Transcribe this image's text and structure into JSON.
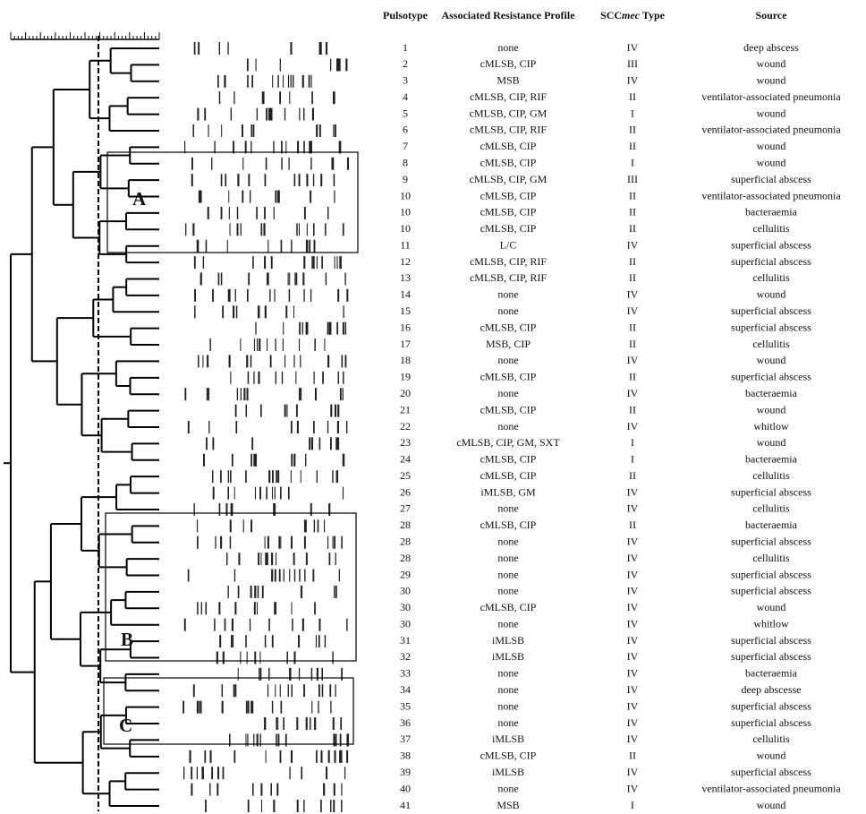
{
  "table": {
    "header": [
      "Pulsotype",
      "Associated Resistance Profile",
      {
        "prefix": "SCC",
        "italic": "mec",
        "suffix": " Type"
      },
      "Source"
    ],
    "rows": [
      [
        "1",
        "none",
        "IV",
        "deep abscess"
      ],
      [
        "2",
        "cMLSB, CIP",
        "III",
        "wound"
      ],
      [
        "3",
        "MSB",
        "IV",
        "wound"
      ],
      [
        "4",
        "cMLSB, CIP, RIF",
        "II",
        "ventilator-associated pneumonia"
      ],
      [
        "5",
        "cMLSB, CIP, GM",
        "I",
        "wound"
      ],
      [
        "6",
        "cMLSB, CIP, RIF",
        "II",
        "ventilator-associated pneumonia"
      ],
      [
        "7",
        "cMLSB, CIP",
        "II",
        "wound"
      ],
      [
        "8",
        "cMLSB, CIP",
        "I",
        "wound"
      ],
      [
        "9",
        "cMLSB, CIP, GM",
        "III",
        "superficial abscess"
      ],
      [
        "10",
        "cMLSB, CIP",
        "II",
        "ventilator-associated pneumonia"
      ],
      [
        "10",
        "cMLSB, CIP",
        "II",
        "bacteraemia"
      ],
      [
        "10",
        "cMLSB, CIP",
        "II",
        "cellulitis"
      ],
      [
        "11",
        "L/C",
        "IV",
        "superficial abscess"
      ],
      [
        "12",
        "cMLSB, CIP, RIF",
        "II",
        "superficial abscess"
      ],
      [
        "13",
        "cMLSB, CIP, RIF",
        "II",
        "cellulitis"
      ],
      [
        "14",
        "none",
        "IV",
        "wound"
      ],
      [
        "15",
        "none",
        "IV",
        "superficial abscess"
      ],
      [
        "16",
        "cMLSB, CIP",
        "II",
        "superficial abscess"
      ],
      [
        "17",
        "MSB, CIP",
        "II",
        "cellulitis"
      ],
      [
        "18",
        "none",
        "IV",
        "wound"
      ],
      [
        "19",
        "cMLSB, CIP",
        "II",
        "superficial abscess"
      ],
      [
        "20",
        "none",
        "IV",
        "bacteraemia"
      ],
      [
        "21",
        "cMLSB, CIP",
        "II",
        "wound"
      ],
      [
        "22",
        "none",
        "IV",
        "whitlow"
      ],
      [
        "23",
        "cMLSB, CIP, GM, SXT",
        "I",
        "wound"
      ],
      [
        "24",
        "cMLSB, CIP",
        "I",
        "bacteraemia"
      ],
      [
        "25",
        "cMLSB, CIP",
        "II",
        "cellulitis"
      ],
      [
        "26",
        "iMLSB, GM",
        "IV",
        "superficial abscess"
      ],
      [
        "27",
        "none",
        "IV",
        "cellulitis"
      ],
      [
        "28",
        "cMLSB, CIP",
        "II",
        "bacteraemia"
      ],
      [
        "28",
        "none",
        "IV",
        "superficial abscess"
      ],
      [
        "28",
        "none",
        "IV",
        "cellulitis"
      ],
      [
        "29",
        "none",
        "IV",
        "superficial abscess"
      ],
      [
        "30",
        "none",
        "IV",
        "superficial abscess"
      ],
      [
        "30",
        "cMLSB, CIP",
        "IV",
        "wound"
      ],
      [
        "30",
        "none",
        "IV",
        "whitlow"
      ],
      [
        "31",
        "iMLSB",
        "IV",
        "superficial abscess"
      ],
      [
        "32",
        "iMLSB",
        "IV",
        "superficial abscess"
      ],
      [
        "33",
        "none",
        "IV",
        "bacteraemia"
      ],
      [
        "34",
        "none",
        "IV",
        "deep abscesse"
      ],
      [
        "35",
        "none",
        "IV",
        "superficial abscess"
      ],
      [
        "36",
        "none",
        "IV",
        "superficial abscess"
      ],
      [
        "37",
        "iMLSB",
        "IV",
        "cellulitis"
      ],
      [
        "38",
        "cMLSB, CIP",
        "II",
        "wound"
      ],
      [
        "39",
        "iMLSB",
        "IV",
        "superficial abscess"
      ],
      [
        "40",
        "none",
        "IV",
        "ventilator-associated pneumonia"
      ],
      [
        "41",
        "MSB",
        "I",
        "wound"
      ]
    ]
  },
  "labels": [
    "A",
    "B",
    "C"
  ]
}
